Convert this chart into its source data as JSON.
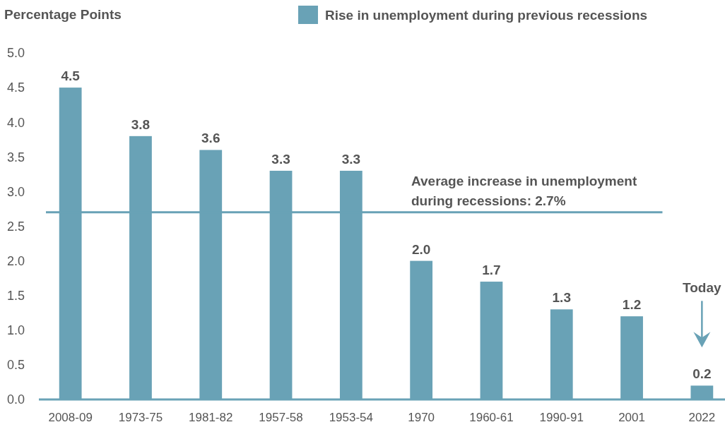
{
  "chart_data": {
    "type": "bar",
    "ylabel": "Percentage Points",
    "categories": [
      "2008-09",
      "1973-75",
      "1981-82",
      "1957-58",
      "1953-54",
      "1970",
      "1960-61",
      "1990-91",
      "2001",
      "2022"
    ],
    "series": [
      {
        "name": "Rise in unemployment during previous recessions",
        "color": "#69a2b6",
        "values": [
          4.5,
          3.8,
          3.6,
          3.3,
          3.3,
          2.0,
          1.7,
          1.3,
          1.2,
          0.2
        ],
        "value_labels": [
          "4.5",
          "3.8",
          "3.6",
          "3.3",
          "3.3",
          "2.0",
          "1.7",
          "1.3",
          "1.2",
          "0.2"
        ]
      }
    ],
    "ylim": [
      0,
      5
    ],
    "yticks": [
      {
        "value": 0,
        "label": "0.0"
      },
      {
        "value": 0.5,
        "label": "0.5"
      },
      {
        "value": 1,
        "label": "1.0"
      },
      {
        "value": 1.5,
        "label": "1.5"
      },
      {
        "value": 2,
        "label": "2.0"
      },
      {
        "value": 2.5,
        "label": "2.5"
      },
      {
        "value": 3,
        "label": "3.0"
      },
      {
        "value": 3.5,
        "label": "3.5"
      },
      {
        "value": 4,
        "label": "4.0"
      },
      {
        "value": 4.5,
        "label": "4.5"
      },
      {
        "value": 5,
        "label": "5.0"
      }
    ],
    "ref_lines": [
      {
        "axis": "y",
        "value": 2.7,
        "label": "Average increase in unemployment during recessions: 2.7%",
        "color": "#69a2b6"
      }
    ],
    "annotations": [
      "Today"
    ],
    "legend": "top",
    "grid": false
  }
}
